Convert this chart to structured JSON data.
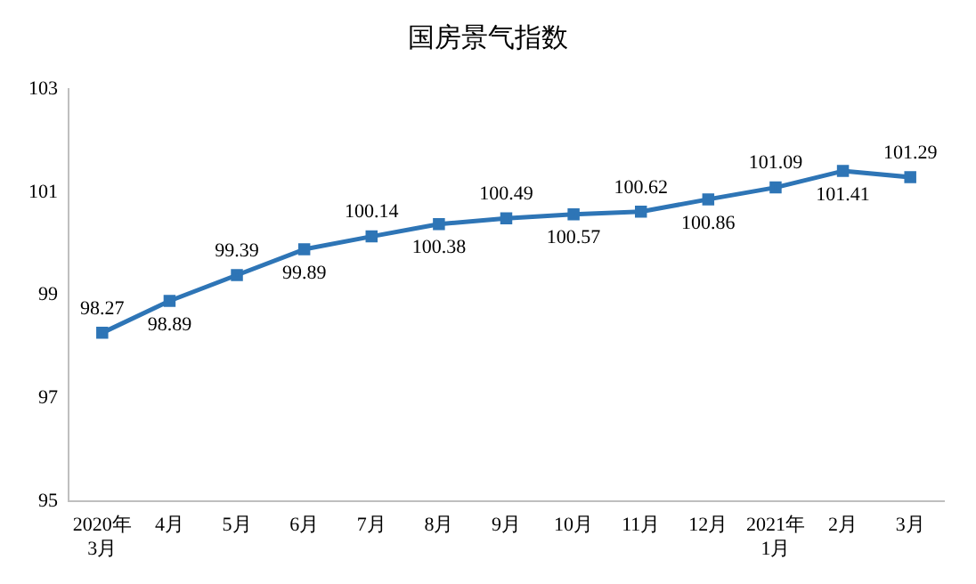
{
  "chart_data": {
    "type": "line",
    "title": "国房景气指数",
    "categories": [
      "2020年\n3月",
      "4月",
      "5月",
      "6月",
      "7月",
      "8月",
      "9月",
      "10月",
      "11月",
      "12月",
      "2021年\n1月",
      "2月",
      "3月"
    ],
    "values": [
      98.27,
      98.89,
      99.39,
      99.89,
      100.14,
      100.38,
      100.49,
      100.57,
      100.62,
      100.86,
      101.09,
      101.41,
      101.29
    ],
    "color": "#2e75b6",
    "ylim": [
      95,
      103
    ],
    "yticks": [
      95,
      97,
      99,
      101,
      103
    ],
    "grid": false,
    "legend": false,
    "marker": "square",
    "line_style": "solid",
    "data_labels": true
  }
}
